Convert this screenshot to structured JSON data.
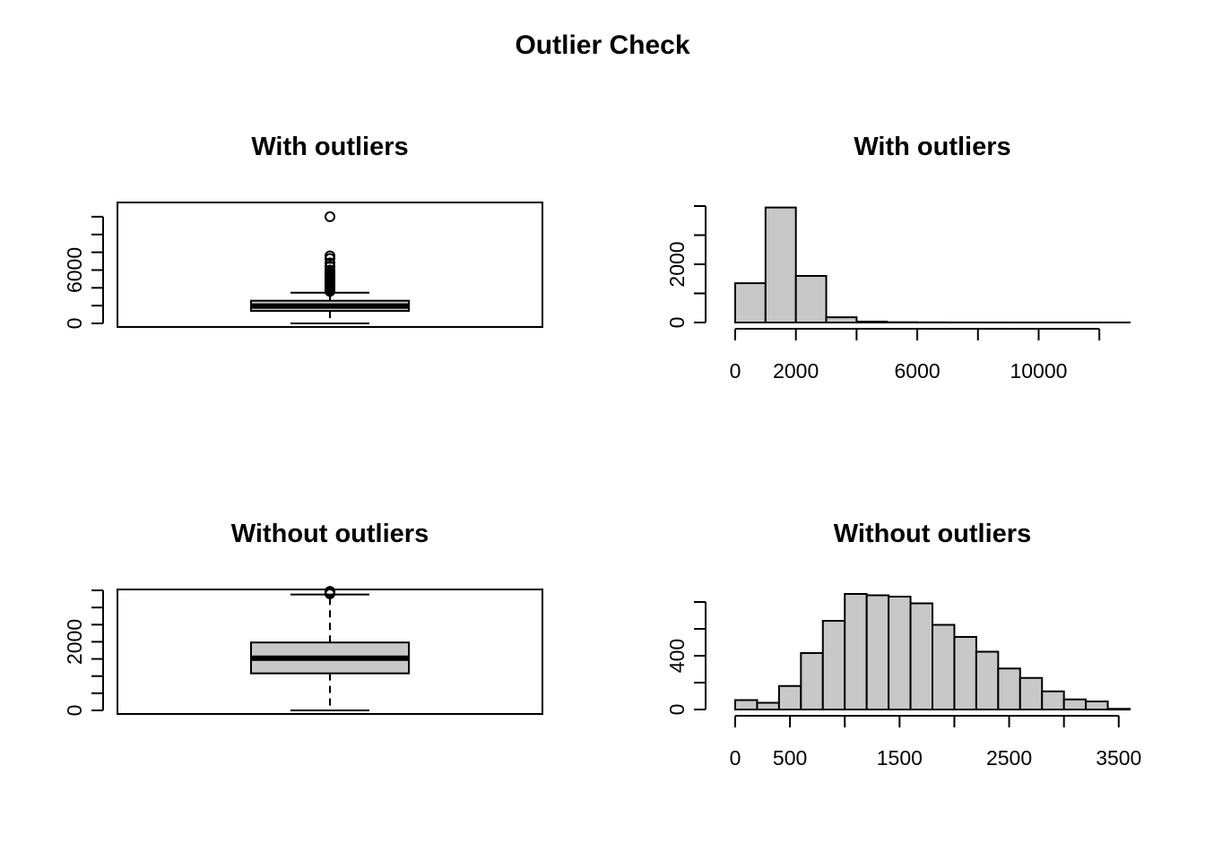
{
  "title": "Outlier Check",
  "chart_data": [
    {
      "type": "boxplot",
      "title": "With outliers",
      "ylim": [
        0,
        13000
      ],
      "yticks": [
        0,
        2000,
        4000,
        6000,
        8000,
        10000,
        12000
      ],
      "ytick_labels": [
        "0",
        "",
        "",
        "6000",
        "",
        "",
        ""
      ],
      "stats": {
        "min": 0,
        "q1": 1400,
        "median": 1950,
        "q3": 2550,
        "whisker_high": 3450
      },
      "outliers": [
        3600,
        3700,
        3800,
        3900,
        4000,
        4100,
        4200,
        4300,
        4400,
        4500,
        4600,
        4700,
        4800,
        4900,
        5000,
        5100,
        5200,
        5300,
        5500,
        5700,
        6000,
        6400,
        6800,
        7300,
        7600,
        12000
      ]
    },
    {
      "type": "bar",
      "subtype": "histogram",
      "title": "With outliers",
      "xlim": [
        0,
        13000
      ],
      "ylim": [
        0,
        4000
      ],
      "bin_edges": [
        0,
        1000,
        2000,
        3000,
        4000,
        5000,
        6000,
        7000,
        8000,
        9000,
        10000,
        11000,
        12000,
        13000
      ],
      "counts": [
        1350,
        3950,
        1600,
        180,
        30,
        10,
        5,
        3,
        2,
        1,
        1,
        1,
        1
      ],
      "xticks": [
        0,
        2000,
        4000,
        6000,
        8000,
        10000,
        12000
      ],
      "xtick_labels": [
        "0",
        "2000",
        "",
        "6000",
        "",
        "10000",
        ""
      ],
      "yticks": [
        0,
        1000,
        2000,
        3000,
        4000
      ],
      "ytick_labels": [
        "0",
        "",
        "2000",
        "",
        ""
      ]
    },
    {
      "type": "boxplot",
      "title": "Without outliers",
      "ylim": [
        0,
        3500
      ],
      "yticks": [
        0,
        500,
        1000,
        1500,
        2000,
        2500,
        3000,
        3500
      ],
      "ytick_labels": [
        "0",
        "",
        "",
        "",
        "2000",
        "",
        "",
        ""
      ],
      "stats": {
        "min": 0,
        "q1": 1080,
        "median": 1520,
        "q3": 1980,
        "whisker_high": 3380
      },
      "outliers": [
        3400,
        3430,
        3450,
        3470
      ]
    },
    {
      "type": "bar",
      "subtype": "histogram",
      "title": "Without outliers",
      "xlim": [
        0,
        3600
      ],
      "ylim": [
        0,
        800
      ],
      "bin_edges": [
        0,
        200,
        400,
        600,
        800,
        1000,
        1200,
        1400,
        1600,
        1800,
        2000,
        2200,
        2400,
        2600,
        2800,
        3000,
        3200,
        3400,
        3600
      ],
      "counts": [
        70,
        50,
        175,
        420,
        660,
        860,
        850,
        840,
        790,
        630,
        540,
        430,
        305,
        235,
        135,
        75,
        60,
        5
      ],
      "xticks": [
        0,
        500,
        1000,
        1500,
        2000,
        2500,
        3000,
        3500
      ],
      "xtick_labels": [
        "0",
        "500",
        "",
        "1500",
        "",
        "2500",
        "",
        "3500"
      ],
      "yticks": [
        0,
        200,
        400,
        600,
        800
      ],
      "ytick_labels": [
        "0",
        "",
        "400",
        "",
        ""
      ]
    }
  ]
}
